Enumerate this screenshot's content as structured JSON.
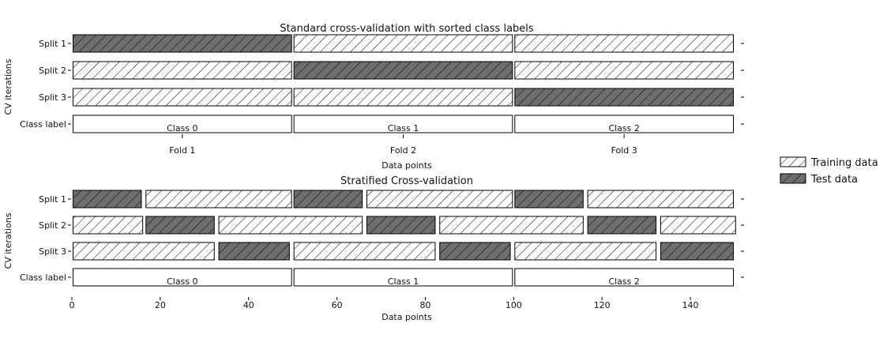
{
  "chart_data": [
    {
      "type": "bar",
      "title": "Standard cross-validation with sorted class labels",
      "ylabel": "CV iterations",
      "xlabel": "Data points",
      "xlim": [
        0,
        150
      ],
      "rows": [
        {
          "label": "Split 1",
          "segments": [
            {
              "start": 0,
              "end": 50,
              "role": "test"
            },
            {
              "start": 50,
              "end": 100,
              "role": "train"
            },
            {
              "start": 100,
              "end": 150,
              "role": "train"
            }
          ]
        },
        {
          "label": "Split 2",
          "segments": [
            {
              "start": 0,
              "end": 50,
              "role": "train"
            },
            {
              "start": 50,
              "end": 100,
              "role": "test"
            },
            {
              "start": 100,
              "end": 150,
              "role": "train"
            }
          ]
        },
        {
          "label": "Split 3",
          "segments": [
            {
              "start": 0,
              "end": 50,
              "role": "train"
            },
            {
              "start": 50,
              "end": 100,
              "role": "train"
            },
            {
              "start": 100,
              "end": 150,
              "role": "test"
            }
          ]
        },
        {
          "label": "Class label",
          "segments": [
            {
              "start": 0,
              "end": 50,
              "role": "class",
              "text": "Class 0"
            },
            {
              "start": 50,
              "end": 100,
              "role": "class",
              "text": "Class 1"
            },
            {
              "start": 100,
              "end": 150,
              "role": "class",
              "text": "Class 2"
            }
          ]
        }
      ],
      "xticks": [
        {
          "value": 25,
          "label": "Fold 1"
        },
        {
          "value": 75,
          "label": "Fold 2"
        },
        {
          "value": 125,
          "label": "Fold 3"
        }
      ]
    },
    {
      "type": "bar",
      "title": "Stratified Cross-validation",
      "ylabel": "CV iterations",
      "xlabel": "Data points",
      "xlim": [
        0,
        150
      ],
      "rows": [
        {
          "label": "Split 1",
          "segments": [
            {
              "start": 0,
              "end": 16,
              "role": "test"
            },
            {
              "start": 16.5,
              "end": 50,
              "role": "train"
            },
            {
              "start": 50,
              "end": 66,
              "role": "test"
            },
            {
              "start": 66.5,
              "end": 100,
              "role": "train"
            },
            {
              "start": 100,
              "end": 116,
              "role": "test"
            },
            {
              "start": 116.5,
              "end": 150,
              "role": "train"
            }
          ]
        },
        {
          "label": "Split 2",
          "segments": [
            {
              "start": 0,
              "end": 16.3,
              "role": "train"
            },
            {
              "start": 16.5,
              "end": 32.5,
              "role": "test"
            },
            {
              "start": 33,
              "end": 66,
              "role": "train"
            },
            {
              "start": 66.5,
              "end": 82.5,
              "role": "test"
            },
            {
              "start": 83,
              "end": 116,
              "role": "train"
            },
            {
              "start": 116.5,
              "end": 132.5,
              "role": "test"
            },
            {
              "start": 133,
              "end": 150.5,
              "role": "train"
            }
          ]
        },
        {
          "label": "Split 3",
          "segments": [
            {
              "start": 0,
              "end": 32.5,
              "role": "train"
            },
            {
              "start": 33,
              "end": 49.5,
              "role": "test"
            },
            {
              "start": 50,
              "end": 82.5,
              "role": "train"
            },
            {
              "start": 83,
              "end": 99.5,
              "role": "test"
            },
            {
              "start": 100,
              "end": 132.5,
              "role": "train"
            },
            {
              "start": 133,
              "end": 150,
              "role": "test"
            }
          ]
        },
        {
          "label": "Class label",
          "segments": [
            {
              "start": 0,
              "end": 50,
              "role": "class",
              "text": "Class 0"
            },
            {
              "start": 50,
              "end": 100,
              "role": "class",
              "text": "Class 1"
            },
            {
              "start": 100,
              "end": 150,
              "role": "class",
              "text": "Class 2"
            }
          ]
        }
      ],
      "xticks": [
        {
          "value": 0,
          "label": "0"
        },
        {
          "value": 20,
          "label": "20"
        },
        {
          "value": 40,
          "label": "40"
        },
        {
          "value": 60,
          "label": "60"
        },
        {
          "value": 80,
          "label": "80"
        },
        {
          "value": 100,
          "label": "100"
        },
        {
          "value": 120,
          "label": "120"
        },
        {
          "value": 140,
          "label": "140"
        }
      ]
    }
  ],
  "legend": {
    "placement": "right",
    "items": [
      {
        "label": "Training data",
        "role": "train"
      },
      {
        "label": "Test data",
        "role": "test"
      }
    ]
  },
  "colors": {
    "test_fill": "#6e6e6e",
    "train_fill": "#ffffff",
    "stroke": "#000000"
  }
}
